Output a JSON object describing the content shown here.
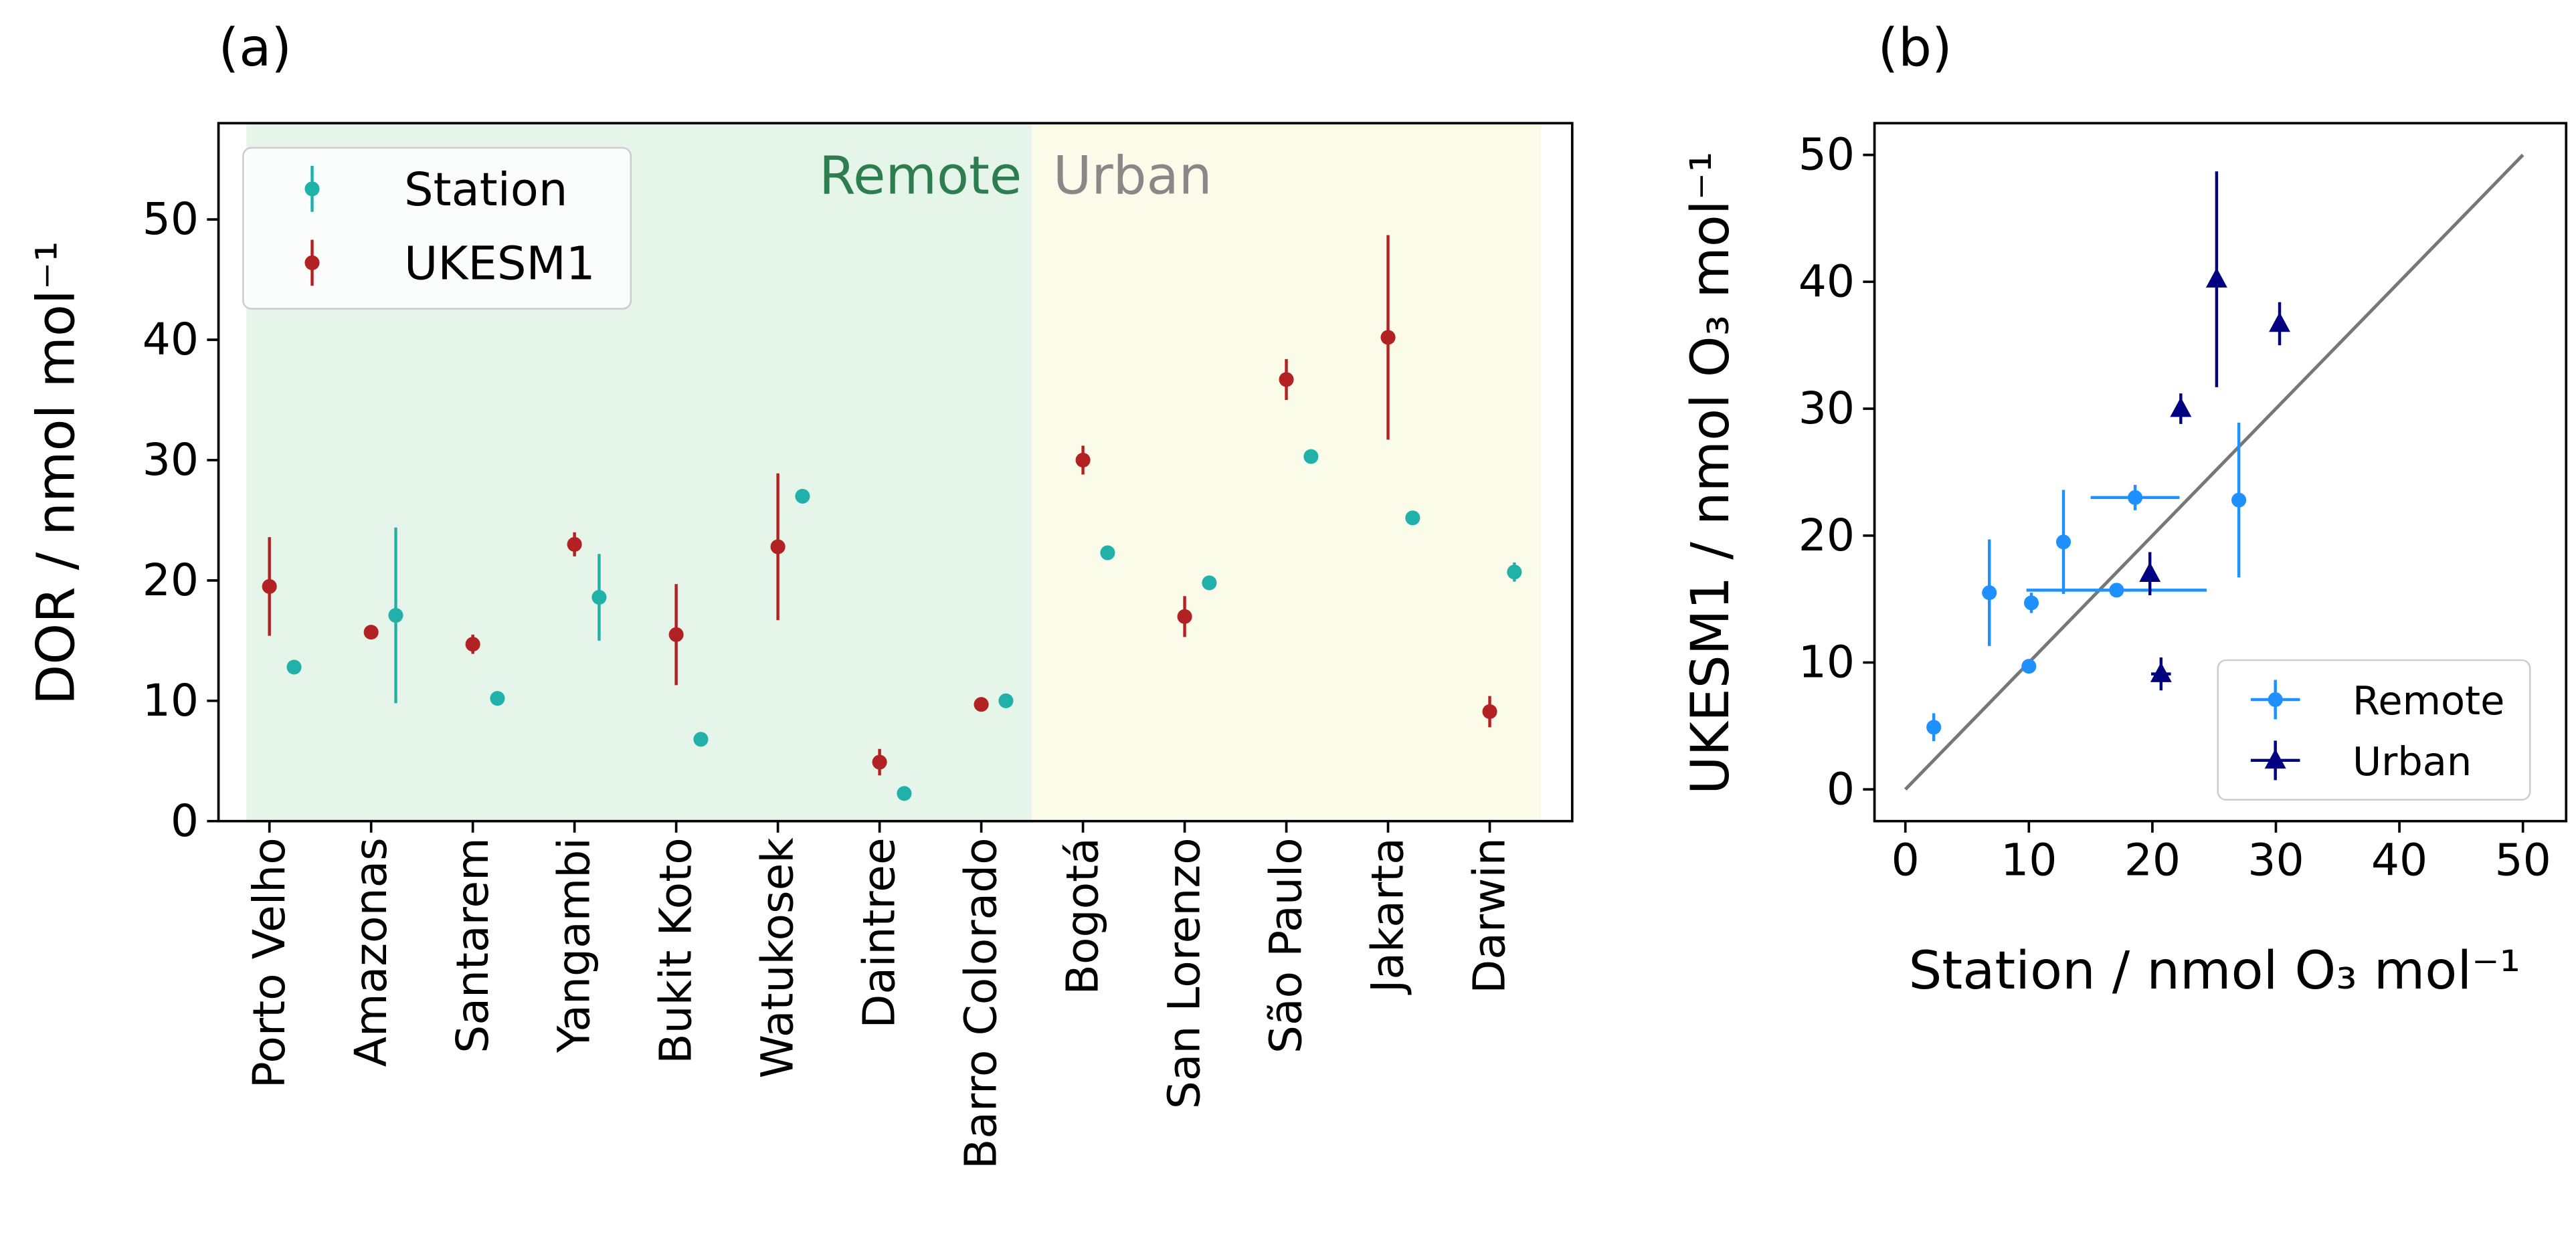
{
  "chart_data": [
    {
      "type": "errorbar",
      "panel_label": "(a)",
      "ylabel": "DOR / nmol mol⁻¹",
      "categories": [
        "Porto Velho",
        "Amazonas",
        "Santarem",
        "Yangambi",
        "Bukit Koto",
        "Watukosek",
        "Daintree",
        "Barro Colorado",
        "Bogotá",
        "San Lorenzo",
        "São Paulo",
        "Jakarta",
        "Darwin"
      ],
      "series": [
        {
          "name": "Station",
          "color": "#20b2aa",
          "values": [
            12.8,
            17.1,
            10.2,
            18.6,
            6.8,
            27,
            2.3,
            10,
            22.3,
            19.8,
            30.3,
            25.2,
            20.7
          ],
          "errors": [
            0,
            7.3,
            0,
            3.6,
            0,
            0,
            0,
            0,
            0,
            0,
            0,
            0,
            0.8
          ]
        },
        {
          "name": "UKESM1",
          "color": "#b22222",
          "values": [
            19.5,
            15.7,
            14.7,
            23,
            15.5,
            22.8,
            4.9,
            9.7,
            30,
            17,
            36.7,
            40.2,
            9.1
          ],
          "errors": [
            4.1,
            0.4,
            0.8,
            1,
            4.2,
            6.1,
            1.1,
            0.5,
            1.2,
            1.7,
            1.7,
            8.5,
            1.3
          ]
        }
      ],
      "annotations": [
        {
          "text": "Remote",
          "color": "#2e7d4f"
        },
        {
          "text": "Urban",
          "color": "#888888"
        }
      ],
      "ylim": [
        0,
        58
      ],
      "yticks": [
        0,
        10,
        20,
        30,
        40,
        50
      ],
      "legend": "upper left"
    },
    {
      "type": "scatter",
      "panel_label": "(b)",
      "xlabel": "Station / nmol O₃ mol⁻¹",
      "ylabel": "UKESM1 / nmol O₃ mol⁻¹",
      "xlim": [
        -2.5,
        53.5
      ],
      "ylim": [
        -2.5,
        52.5
      ],
      "xticks": [
        0,
        10,
        20,
        30,
        40,
        50
      ],
      "yticks": [
        0,
        10,
        20,
        30,
        40,
        50
      ],
      "identity_line": [
        0,
        50
      ],
      "identity_color": "#777777",
      "legend": "lower right",
      "series": [
        {
          "name": "Remote",
          "color": "#1e90ff",
          "marker": "circle",
          "x": [
            12.8,
            17.1,
            10.2,
            18.6,
            6.8,
            27,
            2.3,
            10
          ],
          "values": [
            19.5,
            15.7,
            14.7,
            23,
            15.5,
            22.8,
            4.9,
            9.7
          ],
          "xerr": [
            0,
            7.3,
            0,
            3.6,
            0,
            0,
            0,
            0
          ],
          "yerr": [
            4.1,
            0.4,
            0.8,
            1,
            4.2,
            6.1,
            1.1,
            0.5
          ]
        },
        {
          "name": "Urban",
          "color": "#000080",
          "marker": "triangle",
          "x": [
            22.3,
            19.8,
            30.3,
            25.2,
            20.7
          ],
          "values": [
            30,
            17,
            36.7,
            40.2,
            9.1
          ],
          "xerr": [
            0,
            0,
            0,
            0,
            0.8
          ],
          "yerr": [
            1.2,
            1.7,
            1.7,
            8.5,
            1.3
          ]
        }
      ]
    }
  ]
}
